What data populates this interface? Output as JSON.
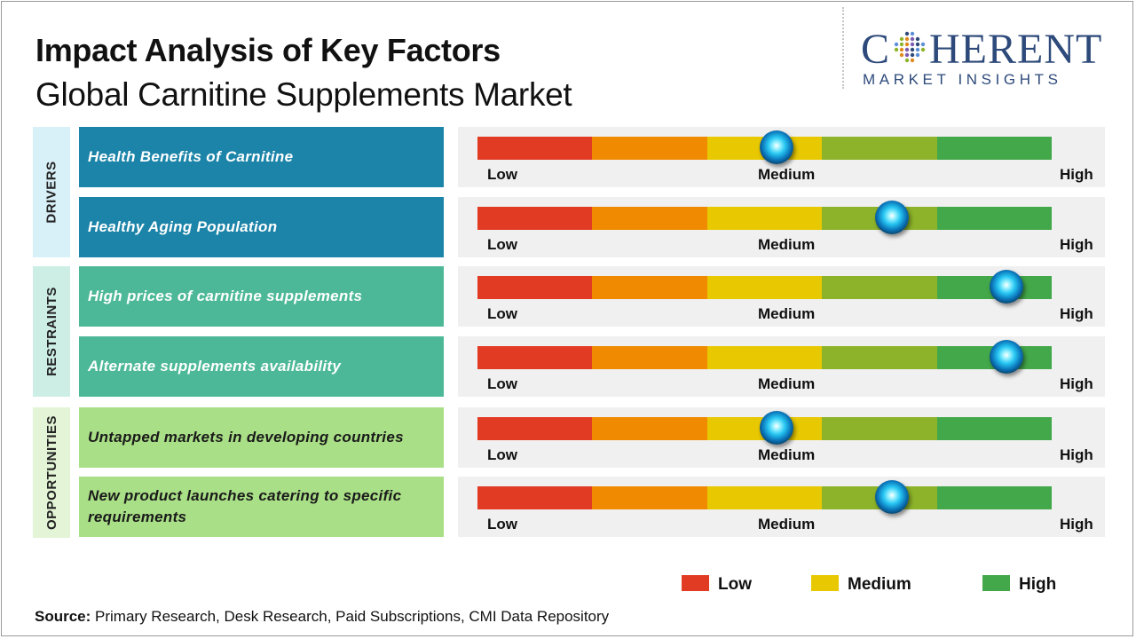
{
  "title": "Impact Analysis of Key Factors",
  "subtitle": "Global Carnitine Supplements Market",
  "logo": {
    "main_before": "C",
    "main_after": "HERENT",
    "sub": "MARKET INSIGHTS"
  },
  "colors": {
    "segments": [
      "#e23b24",
      "#f08a00",
      "#e8c800",
      "#8db32a",
      "#43a84a"
    ],
    "drivers_group": "#d8f0f8",
    "drivers_factor": "#1b84a8",
    "restraints_group": "#cceee4",
    "restraints_factor": "#4cb897",
    "opportunities_group": "#e3f5d6",
    "opportunities_factor": "#a9df86",
    "legend_low": "#e23b24",
    "legend_medium": "#e8c800",
    "legend_high": "#43a84a"
  },
  "icons": {
    "knob": "blue-glass-indicator-icon",
    "logo": "globe-icon"
  },
  "chart_data": {
    "type": "gauge",
    "scale": [
      "Low",
      "Medium",
      "High"
    ],
    "scale_min": 0,
    "scale_max": 5,
    "groups": [
      {
        "name": "DRIVERS",
        "factors": [
          {
            "label": "Health Benefits of Carnitine",
            "impact": 2.6
          },
          {
            "label": "Healthy Aging Population",
            "impact": 3.6
          }
        ]
      },
      {
        "name": "RESTRAINTS",
        "factors": [
          {
            "label": "High prices of carnitine supplements",
            "impact": 4.6
          },
          {
            "label": "Alternate supplements  availability",
            "impact": 4.6
          }
        ]
      },
      {
        "name": "OPPORTUNITIES",
        "factors": [
          {
            "label": "Untapped markets in developing countries",
            "impact": 2.6
          },
          {
            "label": "New product launches catering to specific requirements",
            "impact": 3.6
          }
        ]
      }
    ],
    "legend": [
      "Low",
      "Medium",
      "High"
    ]
  },
  "source": {
    "label": "Source:",
    "text": " Primary Research, Desk Research, Paid Subscriptions, CMI Data Repository"
  }
}
